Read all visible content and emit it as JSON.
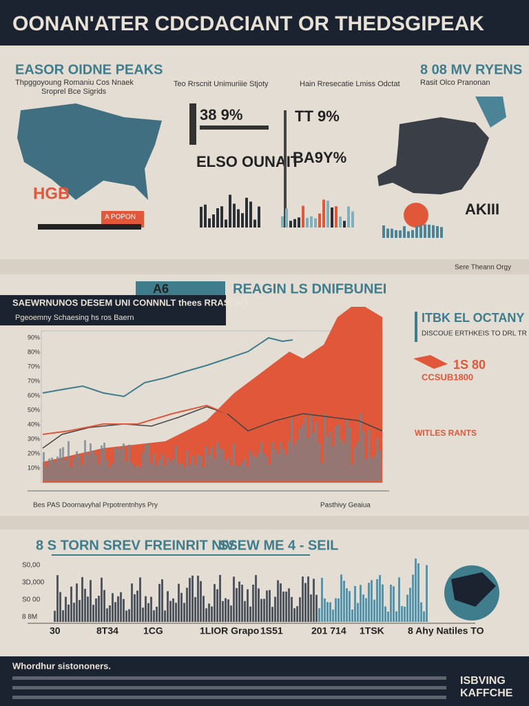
{
  "header": {
    "title": "OONAN'ATER CDCDACIANT OR THEDSGIPEAK"
  },
  "panel1": {
    "heading": "EASOR OIDNE PEAKS",
    "subtitle": "Thpggoyoung Romaniu Cos Nnaek",
    "note": "Sroprel Bce Sigrids",
    "col2": "Teo Rrscnit Unimuriiie Stjoty",
    "col3": "Hain Rresecatie Lmiss Odctat",
    "stat1": "38 9%",
    "stat2": "ELSO OUNAIT",
    "stat3": "TT 9%",
    "stat4": "BA9Y%",
    "badge": "HGB",
    "tag": "A POPON",
    "right_heading": "8 08 MV RYENS",
    "right_sub": "Rasit Olco Pranonan",
    "right_stat": "AKIII",
    "footer_note": "Sere Theann Orgy"
  },
  "panel2": {
    "tag": "A6",
    "heading": "REAGIN LS DNIFBUNEI",
    "box_title": "SAEWRNUNOS DESEM UNI CONNNLT thees RRASONS",
    "box_sub": "Pgeoemny Schaesing hs ros Baern",
    "side_heading": "ITBK EL OCTANY",
    "side_sub": "DISCOUE ERTHKEIS TO DRL TR PANDEIT",
    "side_stat": "1S 80",
    "side_stat2": "CCSUB1800",
    "side_note": "WITLES RANTS",
    "caption_left": "Bes PAS Doornavyhal Prpotrentnhys Pry",
    "caption_right": "Pasthivy Geaiua",
    "y_labels": [
      "90%",
      "80%",
      "70%",
      "70%",
      "60%",
      "50%",
      "40%",
      "30%",
      "20%",
      "10%"
    ]
  },
  "panel3": {
    "left_heading": "8 S TORN SREV FREINRIT NIV",
    "right_heading": "SSEW ME 4 - SEIL",
    "y_labels": [
      "S0,00",
      "3D,000",
      "S0 00",
      "8 8M"
    ],
    "x_labels": [
      "30",
      "8T34",
      "1CG",
      "1LIOR Grapo",
      "1S51",
      "201 714",
      "1TSK",
      "8 Ahy Natiles TO"
    ]
  },
  "footer": {
    "heading": "Whordhur sistononers.",
    "logo": [
      "ISBVING",
      "KAFFCHE"
    ]
  }
}
